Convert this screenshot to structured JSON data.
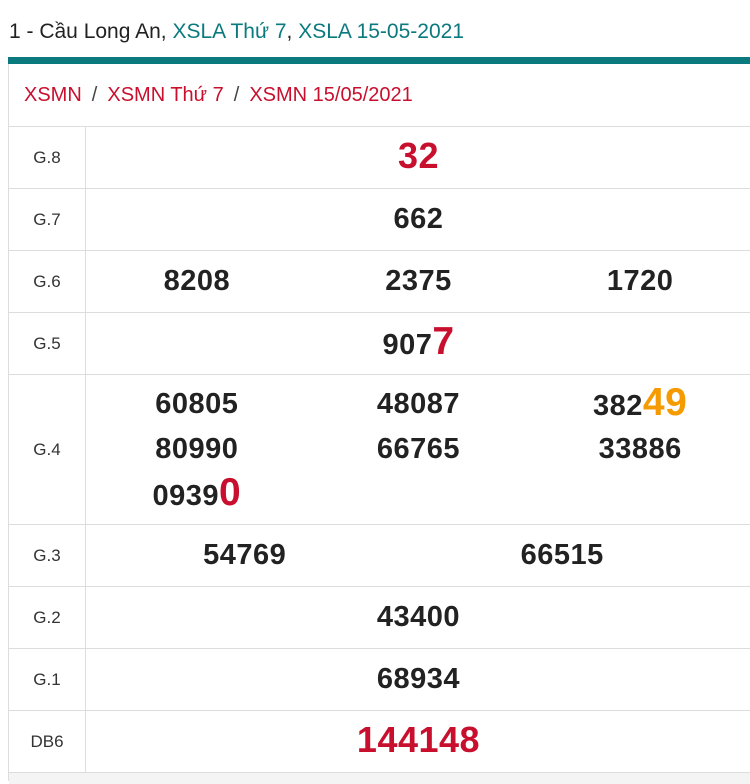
{
  "header": {
    "prefix": "1 - Cầu Long An, ",
    "link1": "XSLA Thứ 7",
    "comma": ", ",
    "link2": "XSLA 15-05-2021"
  },
  "colors": {
    "teal": "#0b7a7e",
    "red": "#c8102e",
    "orange": "#f59b00"
  },
  "breadcrumb": [
    {
      "label": "XSMN"
    },
    {
      "label": "XSMN Thứ 7"
    },
    {
      "label": "XSMN 15/05/2021"
    }
  ],
  "breadcrumb_sep": "/",
  "rows": [
    {
      "label": "G.8",
      "cols": 1,
      "numbers": [
        {
          "pre": "",
          "hl": "32",
          "hl_color": "#c8102e",
          "big": false
        }
      ]
    },
    {
      "label": "G.7",
      "cols": 1,
      "numbers": [
        {
          "pre": "662",
          "hl": ""
        }
      ]
    },
    {
      "label": "G.6",
      "cols": 3,
      "numbers": [
        {
          "pre": "8208",
          "hl": ""
        },
        {
          "pre": "2375",
          "hl": ""
        },
        {
          "pre": "1720",
          "hl": ""
        }
      ]
    },
    {
      "label": "G.5",
      "cols": 1,
      "numbers": [
        {
          "pre": "907",
          "hl": "7",
          "hl_color": "#c8102e",
          "big": true
        }
      ]
    },
    {
      "label": "G.4",
      "cols": 3,
      "numbers": [
        {
          "pre": "60805",
          "hl": ""
        },
        {
          "pre": "48087",
          "hl": ""
        },
        {
          "pre": "382",
          "hl": "49",
          "hl_color": "#f59b00",
          "big": true
        },
        {
          "pre": "80990",
          "hl": ""
        },
        {
          "pre": "66765",
          "hl": ""
        },
        {
          "pre": "33886",
          "hl": ""
        },
        {
          "pre": "0939",
          "hl": "0",
          "hl_color": "#c8102e",
          "big": true
        }
      ]
    },
    {
      "label": "G.3",
      "cols": 2,
      "numbers": [
        {
          "pre": "54769",
          "hl": ""
        },
        {
          "pre": "66515",
          "hl": ""
        }
      ]
    },
    {
      "label": "G.2",
      "cols": 1,
      "numbers": [
        {
          "pre": "43400",
          "hl": ""
        }
      ]
    },
    {
      "label": "G.1",
      "cols": 1,
      "numbers": [
        {
          "pre": "68934",
          "hl": ""
        }
      ]
    },
    {
      "label": "DB6",
      "cols": 1,
      "numbers": [
        {
          "pre": "",
          "hl": "144148",
          "hl_color": "#c8102e",
          "big": false
        }
      ]
    }
  ]
}
